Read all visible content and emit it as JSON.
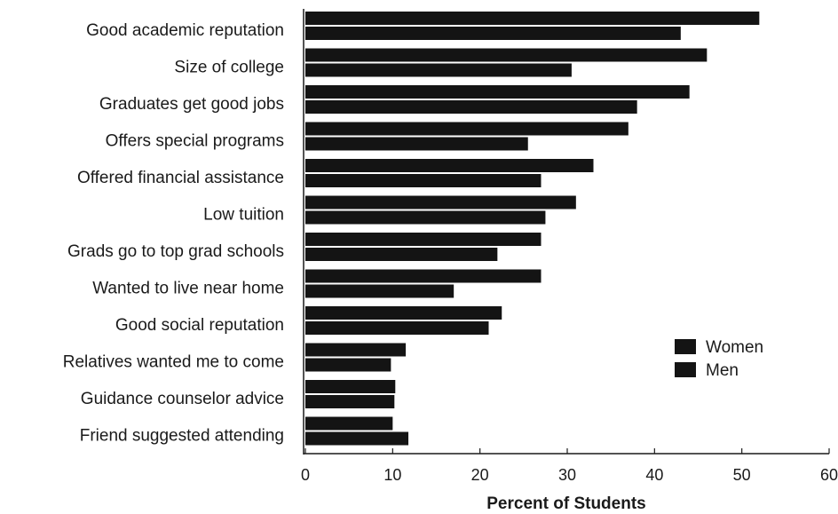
{
  "chart_data": {
    "type": "bar",
    "orientation": "horizontal",
    "xlabel": "Percent of Students",
    "ylabel": "",
    "title": "",
    "xlim": [
      0,
      60
    ],
    "xticks": [
      "0",
      "10",
      "20",
      "30",
      "40",
      "50",
      "60"
    ],
    "grid": false,
    "legend_position": "right-middle",
    "categories": [
      "Good academic reputation",
      "Size of college",
      "Graduates get good jobs",
      "Offers special programs",
      "Offered financial assistance",
      "Low tuition",
      "Grads go to top grad schools",
      "Wanted to live near home",
      "Good social reputation",
      "Relatives wanted me to come",
      "Guidance counselor advice",
      "Friend suggested attending"
    ],
    "series": [
      {
        "name": "Women",
        "color": "#141414",
        "values": [
          52,
          46,
          44,
          37,
          33,
          31,
          27,
          27,
          22.5,
          11.5,
          10.3,
          10
        ]
      },
      {
        "name": "Men",
        "color": "#141414",
        "values": [
          43,
          30.5,
          38,
          25.5,
          27,
          27.5,
          22,
          17,
          21,
          9.8,
          10.2,
          11.8
        ]
      }
    ]
  }
}
